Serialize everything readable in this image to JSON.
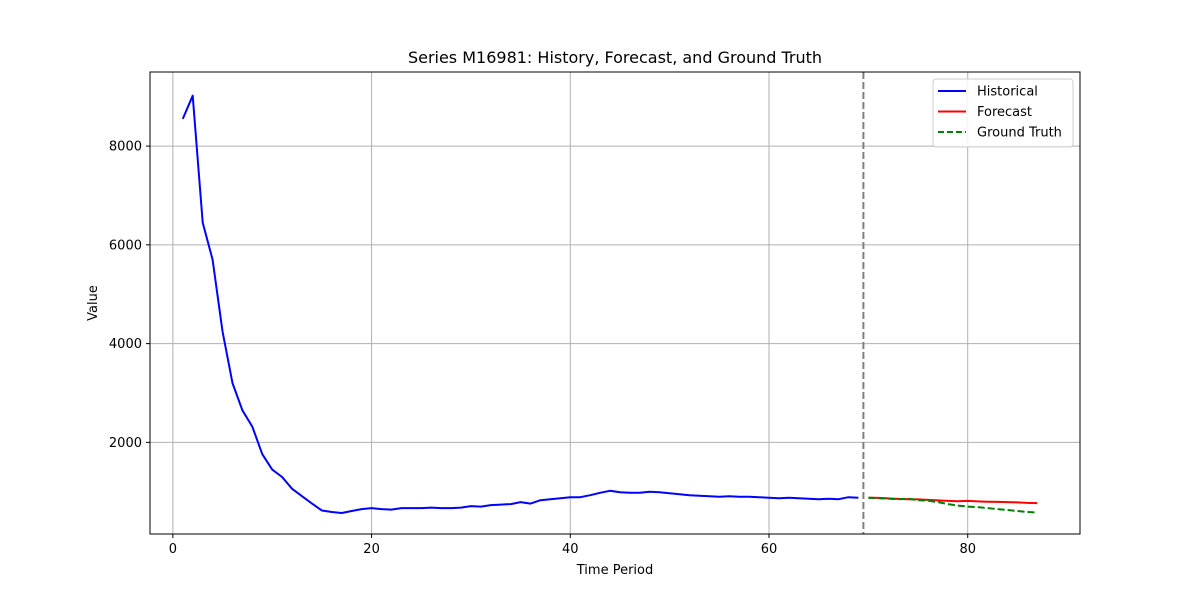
{
  "chart_data": {
    "type": "line",
    "title": "Series M16981: History, Forecast, and Ground Truth",
    "xlabel": "Time Period",
    "ylabel": "Value",
    "xlim": [
      -2.3,
      91.3
    ],
    "ylim": [
      145,
      9500
    ],
    "xticks": [
      0,
      20,
      40,
      60,
      80
    ],
    "yticks": [
      2000,
      4000,
      6000,
      8000
    ],
    "grid": true,
    "legend_position": "top-right",
    "forecast_start_marker": 69.5,
    "series": [
      {
        "name": "Historical",
        "color": "#0000ff",
        "style": "solid",
        "x": [
          1,
          2,
          3,
          4,
          5,
          6,
          7,
          8,
          9,
          10,
          11,
          12,
          13,
          14,
          15,
          16,
          17,
          18,
          19,
          20,
          21,
          22,
          23,
          24,
          25,
          26,
          27,
          28,
          29,
          30,
          31,
          32,
          33,
          34,
          35,
          36,
          37,
          38,
          39,
          40,
          41,
          42,
          43,
          44,
          45,
          46,
          47,
          48,
          49,
          50,
          51,
          52,
          53,
          54,
          55,
          56,
          57,
          58,
          59,
          60,
          61,
          62,
          63,
          64,
          65,
          66,
          67,
          68,
          69
        ],
        "values": [
          8550,
          9020,
          6450,
          5700,
          4250,
          3200,
          2650,
          2320,
          1760,
          1450,
          1300,
          1060,
          910,
          760,
          620,
          590,
          570,
          610,
          650,
          670,
          650,
          640,
          670,
          670,
          670,
          680,
          670,
          670,
          680,
          710,
          700,
          730,
          740,
          750,
          790,
          760,
          830,
          850,
          870,
          890,
          890,
          930,
          980,
          1020,
          990,
          980,
          980,
          1000,
          990,
          970,
          950,
          930,
          920,
          910,
          900,
          910,
          900,
          900,
          890,
          880,
          870,
          880,
          870,
          860,
          850,
          860,
          850,
          890,
          880
        ]
      },
      {
        "name": "Forecast",
        "color": "#ff0000",
        "style": "solid",
        "x": [
          70,
          71,
          72,
          73,
          74,
          75,
          76,
          77,
          78,
          79,
          80,
          81,
          82,
          83,
          84,
          85,
          86,
          87
        ],
        "values": [
          880,
          875,
          865,
          855,
          850,
          845,
          835,
          825,
          815,
          810,
          815,
          805,
          800,
          795,
          790,
          785,
          775,
          770
        ]
      },
      {
        "name": "Ground Truth",
        "color": "#008000",
        "style": "dashed",
        "x": [
          70,
          71,
          72,
          73,
          74,
          75,
          76,
          77,
          78,
          79,
          80,
          81,
          82,
          83,
          84,
          85,
          86,
          87
        ],
        "values": [
          880,
          870,
          860,
          850,
          860,
          830,
          820,
          790,
          750,
          720,
          700,
          690,
          670,
          650,
          630,
          610,
          590,
          580
        ]
      }
    ]
  }
}
